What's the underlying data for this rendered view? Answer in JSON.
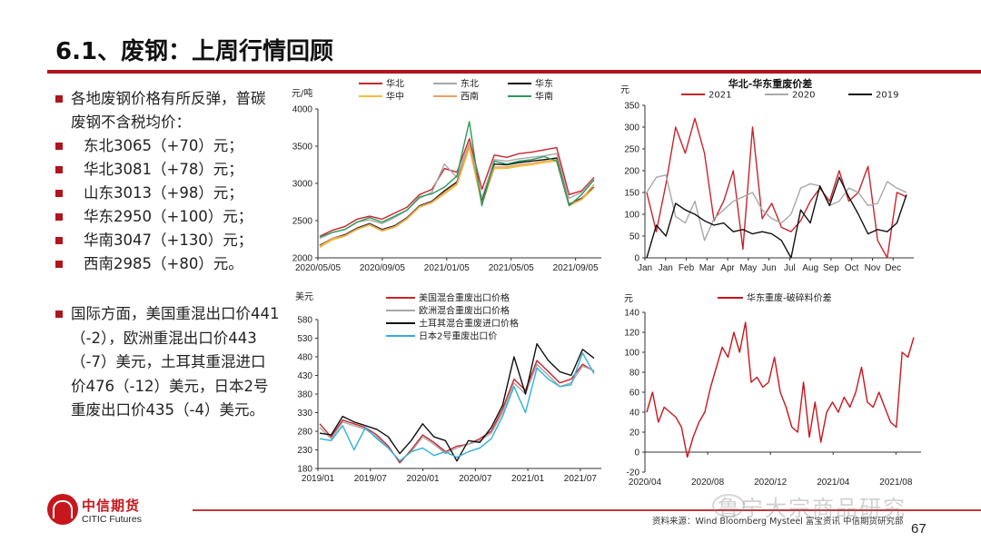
{
  "page": {
    "title": "6.1、废钢：上周行情回顾",
    "page_number": "67",
    "source": "资料来源：Wind Bloomberg Mysteel 富宝资讯 中信期货研究部",
    "watermark": "鲁宁大宗商品研究",
    "brand_color": "#b0141c"
  },
  "logo": {
    "cn": "中信期货",
    "en": "CITIC Futures"
  },
  "bullets": {
    "intro": "各地废钢价格有所反弹，普碳废钢不含税均价：",
    "items": [
      "东北3065（+70）元；",
      "华北3081（+78）元；",
      "山东3013（+98）元；",
      "华东2950（+100）元；",
      "华南3047（+130）元；",
      "西南2985（+80）元。"
    ],
    "international": "国际方面，美国重混出口价441（-2），欧洲重混出口价443（-7）美元，土耳其重混进口价476（-12）美元，日本2号重废出口价435（-4）美元。"
  },
  "chart_data": [
    {
      "id": "regional_scrap_prices",
      "type": "line",
      "title": "",
      "unit": "元/吨",
      "ylabel": "元/吨",
      "ylim": [
        2000,
        4000
      ],
      "yticks": [
        2000,
        2500,
        3000,
        3500,
        4000
      ],
      "xticks": [
        "2020/05/05",
        "2020/09/05",
        "2021/01/05",
        "2021/05/05",
        "2021/09/05"
      ],
      "x": [
        "2020/05",
        "2020/06",
        "2020/07",
        "2020/08",
        "2020/09",
        "2020/10",
        "2020/11",
        "2020/12",
        "2021/01",
        "2021/02",
        "2021/03",
        "2021/04",
        "2021/05a",
        "2021/05b",
        "2021/05c",
        "2021/06",
        "2021/07",
        "2021/08",
        "2021/09",
        "2021/10",
        "2021/11a",
        "2021/11b",
        "2021/12"
      ],
      "legend_position": "top",
      "series": [
        {
          "name": "华北",
          "color": "#c8242c",
          "values": [
            2290,
            2370,
            2420,
            2520,
            2560,
            2520,
            2600,
            2680,
            2850,
            2920,
            3200,
            3150,
            3600,
            2920,
            3380,
            3350,
            3400,
            3420,
            3450,
            3480,
            2850,
            2900,
            3080
          ]
        },
        {
          "name": "东北",
          "color": "#a8a8a8",
          "values": [
            2260,
            2340,
            2380,
            2480,
            2510,
            2460,
            2540,
            2640,
            2800,
            2880,
            3260,
            3080,
            3540,
            2800,
            3320,
            3300,
            3330,
            3350,
            3370,
            3400,
            2800,
            2880,
            3065
          ]
        },
        {
          "name": "华东",
          "color": "#111111",
          "values": [
            2170,
            2260,
            2310,
            2400,
            2460,
            2380,
            2430,
            2540,
            2700,
            2760,
            2900,
            3020,
            3500,
            2750,
            3260,
            3250,
            3280,
            3300,
            3320,
            3340,
            2720,
            2800,
            2950
          ]
        },
        {
          "name": "华中",
          "color": "#f0c030",
          "values": [
            2140,
            2240,
            2290,
            2380,
            2440,
            2360,
            2410,
            2520,
            2680,
            2740,
            2860,
            2980,
            3480,
            2720,
            3200,
            3200,
            3230,
            3250,
            3280,
            3300,
            2700,
            2780,
            2940
          ]
        },
        {
          "name": "西南",
          "color": "#e8a060",
          "values": [
            2160,
            2260,
            2300,
            2390,
            2450,
            2370,
            2420,
            2530,
            2690,
            2750,
            2880,
            3000,
            3520,
            2730,
            3220,
            3220,
            3250,
            3270,
            3300,
            3320,
            2710,
            2790,
            2985
          ]
        },
        {
          "name": "华南",
          "color": "#2a9a5a",
          "values": [
            2280,
            2340,
            2380,
            2480,
            2540,
            2480,
            2560,
            2640,
            2820,
            2860,
            2950,
            3100,
            3830,
            2700,
            3300,
            3260,
            3300,
            3320,
            3360,
            3300,
            2700,
            2850,
            3047
          ]
        }
      ]
    },
    {
      "id": "north_east_spread",
      "type": "line",
      "title": "华北-华东重废价差",
      "unit": "元",
      "ylabel": "元",
      "ylim": [
        0,
        350
      ],
      "yticks": [
        0,
        50,
        100,
        150,
        200,
        250,
        300,
        350
      ],
      "xticks": [
        "Jan",
        "Jan",
        "Feb",
        "Mar",
        "Apr",
        "May",
        "Jun",
        "Jul",
        "Aug",
        "Sep",
        "Oct",
        "Nov",
        "Dec"
      ],
      "legend_position": "top",
      "series": [
        {
          "name": "2021",
          "color": "#c8242c",
          "values": [
            150,
            60,
            170,
            300,
            240,
            320,
            240,
            85,
            130,
            200,
            20,
            300,
            90,
            125,
            70,
            60,
            85,
            130,
            160,
            130,
            200,
            130,
            150,
            210,
            40,
            0,
            150,
            140
          ]
        },
        {
          "name": "2020",
          "color": "#a8a8a8",
          "values": [
            150,
            185,
            190,
            95,
            80,
            130,
            40,
            90,
            110,
            130,
            140,
            150,
            110,
            90,
            80,
            100,
            160,
            170,
            165,
            120,
            130,
            160,
            150,
            120,
            125,
            175,
            160,
            150
          ]
        },
        {
          "name": "2019",
          "color": "#111111",
          "values": [
            0,
            75,
            50,
            125,
            110,
            100,
            85,
            75,
            80,
            60,
            65,
            55,
            60,
            55,
            40,
            0,
            110,
            80,
            165,
            120,
            185,
            140,
            100,
            55,
            65,
            60,
            80,
            145
          ]
        }
      ]
    },
    {
      "id": "international_scrap_prices",
      "type": "line",
      "title": "",
      "unit": "美元",
      "ylabel": "美元",
      "ylim": [
        180,
        580
      ],
      "yticks": [
        180,
        230,
        280,
        330,
        380,
        430,
        480,
        530,
        580
      ],
      "xticks": [
        "2019/01",
        "2019/07",
        "2020/01",
        "2020/07",
        "2021/01",
        "2021/07"
      ],
      "legend_position": "top",
      "series": [
        {
          "name": "美国混合重废出口价格",
          "color": "#c8242c",
          "values": [
            300,
            265,
            310,
            300,
            290,
            270,
            240,
            195,
            230,
            270,
            250,
            225,
            240,
            245,
            260,
            280,
            340,
            420,
            390,
            470,
            440,
            410,
            420,
            460,
            441
          ]
        },
        {
          "name": "欧洲混合重废出口价格",
          "color": "#a8a8a8",
          "values": [
            290,
            260,
            305,
            295,
            285,
            265,
            235,
            200,
            225,
            265,
            245,
            220,
            235,
            245,
            255,
            275,
            330,
            410,
            380,
            460,
            430,
            400,
            410,
            455,
            443
          ]
        },
        {
          "name": "土耳其混合重废进口价格",
          "color": "#111111",
          "values": [
            275,
            270,
            320,
            305,
            295,
            285,
            265,
            220,
            255,
            300,
            265,
            255,
            200,
            255,
            250,
            290,
            350,
            480,
            380,
            515,
            470,
            440,
            430,
            500,
            476
          ]
        },
        {
          "name": "日本2号重废出口价",
          "color": "#30b0d8",
          "values": [
            260,
            255,
            295,
            230,
            290,
            260,
            235,
            200,
            225,
            235,
            215,
            225,
            210,
            225,
            235,
            260,
            320,
            400,
            330,
            450,
            420,
            400,
            405,
            490,
            435
          ]
        }
      ]
    },
    {
      "id": "east_heavy_vs_shredded_spread",
      "type": "line",
      "title": "",
      "unit": "元",
      "ylabel": "元",
      "ylim": [
        -20,
        140
      ],
      "yticks": [
        -20,
        0,
        20,
        40,
        60,
        80,
        100,
        120,
        140
      ],
      "xticks": [
        "2020/04",
        "2020/08",
        "2020/12",
        "2021/04",
        "2021/08"
      ],
      "legend_position": "top",
      "series": [
        {
          "name": "华东重废-破碎料价差",
          "color": "#c8161d",
          "values": [
            40,
            60,
            30,
            45,
            40,
            35,
            25,
            -5,
            15,
            30,
            40,
            65,
            85,
            105,
            95,
            120,
            100,
            130,
            70,
            75,
            65,
            70,
            95,
            60,
            45,
            25,
            20,
            70,
            15,
            50,
            10,
            40,
            50,
            40,
            55,
            45,
            60,
            85,
            50,
            45,
            60,
            45,
            30,
            25,
            100,
            95,
            115
          ]
        }
      ]
    }
  ]
}
